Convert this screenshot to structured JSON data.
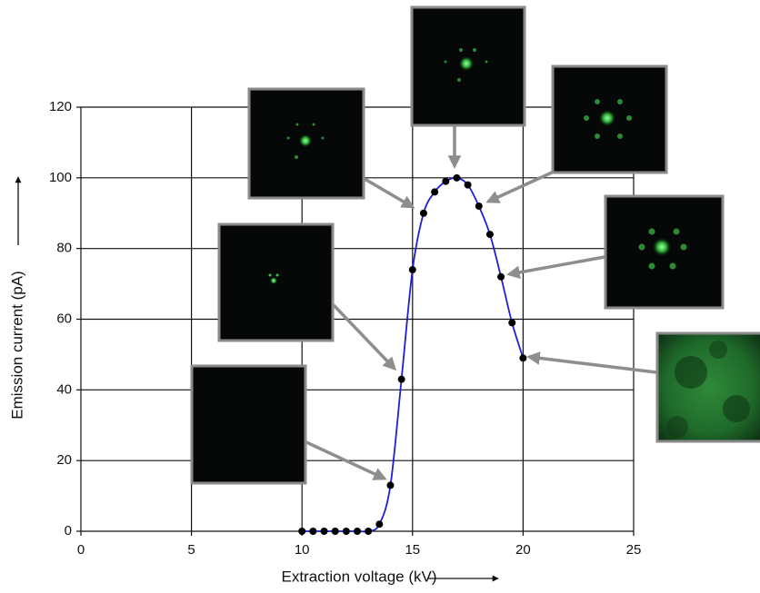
{
  "chart_data": {
    "type": "line",
    "x_label": "Extraction voltage (kV)",
    "y_label": "Emission current (pA)",
    "x": [
      10,
      10.5,
      11,
      11.5,
      12,
      12.5,
      13,
      13.5,
      14,
      14.5,
      15,
      15.5,
      16,
      16.5,
      17,
      17.5,
      18,
      18.5,
      19,
      19.5,
      20
    ],
    "series": [
      {
        "color": "#1f1fd6",
        "marker_color": "#000000",
        "values": [
          0,
          0,
          0,
          0,
          0,
          0,
          0,
          2,
          13,
          43,
          74,
          90,
          96,
          99,
          100,
          98,
          92,
          84,
          72,
          59,
          49
        ]
      }
    ],
    "xlim": [
      0,
      25
    ],
    "ylim": [
      0,
      120
    ],
    "xticks": [
      0,
      5,
      10,
      15,
      20,
      25
    ],
    "yticks": [
      0,
      20,
      40,
      60,
      80,
      100,
      120
    ],
    "grid": true
  }
}
